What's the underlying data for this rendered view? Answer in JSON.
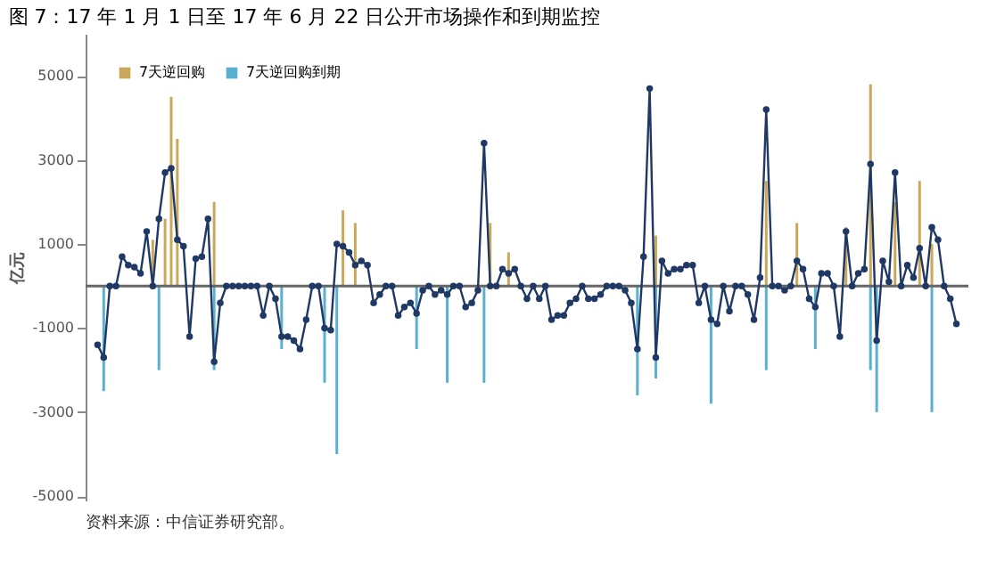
{
  "chart_data": {
    "type": "bar",
    "title": "图 7：17 年 1 月 1 日至 17 年 6 月 22 日公开市场操作和到期监控",
    "ylabel": "亿元",
    "categories": [
      null,
      null,
      null,
      null,
      null,
      null,
      null,
      null,
      null,
      null,
      null,
      null,
      null,
      null,
      null,
      null,
      null,
      null,
      null,
      null,
      null,
      null,
      null,
      null,
      null,
      null,
      null,
      null,
      null,
      null,
      null,
      null,
      null,
      null,
      null,
      null,
      null,
      null,
      null,
      null,
      null,
      null,
      null,
      null,
      null,
      null,
      null,
      null,
      null,
      null,
      null,
      null,
      null,
      null,
      null,
      null,
      null,
      null,
      null,
      null,
      null,
      null,
      null,
      null,
      null,
      null,
      null,
      null,
      null,
      null,
      null,
      null,
      null,
      null,
      null,
      null,
      null,
      null,
      null,
      null,
      null,
      null,
      null,
      null,
      null,
      null,
      null,
      null,
      null,
      null,
      null,
      null,
      null,
      null,
      null,
      null,
      null,
      null,
      null,
      null,
      null,
      null,
      null,
      null,
      null,
      null,
      null,
      null,
      null,
      null,
      null,
      null,
      null,
      null,
      null,
      null,
      null,
      null,
      null,
      null,
      null,
      null,
      null,
      null,
      null,
      null,
      null,
      null,
      null,
      null,
      null,
      null,
      null,
      null,
      null,
      null,
      null,
      null,
      null,
      null,
      null
    ],
    "series": [
      {
        "name": "7天逆回购",
        "color": "#c9a85a",
        "values": [
          null,
          null,
          null,
          null,
          null,
          null,
          null,
          null,
          null,
          1100,
          null,
          1600,
          4500,
          3500,
          null,
          null,
          null,
          null,
          null,
          2000,
          null,
          null,
          null,
          null,
          null,
          null,
          null,
          null,
          null,
          null,
          null,
          null,
          null,
          null,
          null,
          null,
          null,
          null,
          null,
          null,
          1800,
          null,
          1500,
          null,
          null,
          null,
          null,
          null,
          null,
          null,
          null,
          null,
          null,
          null,
          null,
          null,
          null,
          null,
          null,
          null,
          null,
          null,
          null,
          null,
          1500,
          null,
          null,
          800,
          null,
          null,
          null,
          null,
          null,
          null,
          null,
          null,
          null,
          null,
          null,
          null,
          null,
          null,
          null,
          null,
          null,
          null,
          null,
          null,
          null,
          null,
          null,
          1200,
          null,
          null,
          null,
          null,
          null,
          null,
          null,
          null,
          null,
          null,
          null,
          null,
          null,
          null,
          null,
          null,
          null,
          2500,
          null,
          null,
          null,
          null,
          1500,
          null,
          null,
          null,
          null,
          null,
          null,
          null,
          1400,
          null,
          null,
          null,
          4800,
          null,
          null,
          null,
          2000,
          null,
          null,
          null,
          2500,
          null,
          1000,
          null,
          null,
          null,
          null
        ]
      },
      {
        "name": "7天逆回购到期",
        "color": "#5ab0d0",
        "values": [
          null,
          -2500,
          null,
          null,
          null,
          null,
          null,
          null,
          null,
          null,
          -2000,
          null,
          null,
          null,
          null,
          null,
          null,
          null,
          null,
          -2000,
          null,
          null,
          null,
          null,
          null,
          null,
          null,
          null,
          null,
          null,
          -1500,
          null,
          null,
          null,
          null,
          null,
          null,
          -2300,
          null,
          -4000,
          null,
          null,
          null,
          null,
          null,
          null,
          null,
          null,
          null,
          null,
          null,
          null,
          -1500,
          null,
          null,
          null,
          null,
          -2300,
          null,
          null,
          null,
          null,
          null,
          -2300,
          null,
          null,
          null,
          null,
          null,
          null,
          null,
          null,
          null,
          null,
          null,
          null,
          null,
          null,
          null,
          null,
          null,
          null,
          null,
          null,
          null,
          null,
          null,
          null,
          -2600,
          null,
          null,
          -2200,
          null,
          null,
          null,
          null,
          null,
          null,
          null,
          null,
          -2800,
          null,
          null,
          null,
          null,
          null,
          null,
          null,
          null,
          -2000,
          null,
          null,
          null,
          null,
          null,
          null,
          null,
          -1500,
          null,
          null,
          null,
          null,
          null,
          null,
          null,
          null,
          -2000,
          -3000,
          null,
          null,
          null,
          null,
          null,
          null,
          null,
          null,
          -3000,
          null,
          null,
          null,
          null
        ]
      },
      {
        "type": "line",
        "color": "#1f3864",
        "values": [
          -1400,
          -1700,
          0,
          0,
          700,
          500,
          450,
          300,
          1300,
          0,
          1600,
          2700,
          2800,
          1100,
          950,
          -1200,
          650,
          700,
          1600,
          -1800,
          -400,
          0,
          0,
          0,
          0,
          0,
          0,
          -700,
          0,
          -300,
          -1200,
          -1200,
          -1300,
          -1500,
          -800,
          0,
          0,
          -1000,
          -1050,
          1000,
          950,
          800,
          500,
          600,
          500,
          -400,
          -200,
          0,
          0,
          -700,
          -500,
          -400,
          -650,
          -100,
          0,
          -200,
          -100,
          -200,
          0,
          0,
          -500,
          -400,
          -100,
          3400,
          0,
          0,
          400,
          300,
          400,
          0,
          -300,
          0,
          -300,
          0,
          -800,
          -700,
          -700,
          -400,
          -300,
          0,
          -300,
          -300,
          -200,
          0,
          0,
          0,
          -100,
          -400,
          -1500,
          700,
          4700,
          -1700,
          600,
          300,
          400,
          400,
          500,
          500,
          -400,
          0,
          -800,
          -900,
          0,
          -600,
          0,
          0,
          -200,
          -800,
          200,
          4200,
          0,
          0,
          -100,
          0,
          600,
          400,
          -300,
          -500,
          300,
          300,
          0,
          -1200,
          1300,
          0,
          300,
          400,
          2900,
          -1300,
          600,
          100,
          2700,
          0,
          500,
          200,
          900,
          0,
          1400,
          1100,
          0,
          -300,
          -900
        ]
      }
    ],
    "ylim": [
      -5100,
      6000
    ],
    "yticks": [
      -5000,
      -3000,
      -1000,
      1000,
      3000,
      5000
    ],
    "tick_labels": "y",
    "marker": "circle",
    "legend": "top left",
    "grid": false,
    "annotations": [
      "资料来源：中信证券研究部。"
    ]
  }
}
